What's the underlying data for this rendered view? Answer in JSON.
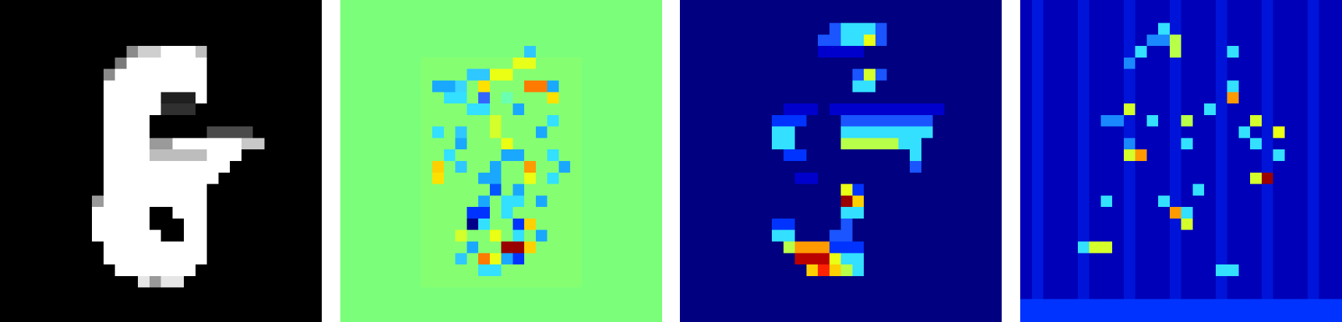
{
  "figure": {
    "panels": [
      {
        "name": "input-digit",
        "colormap": "gray"
      },
      {
        "name": "attribution-diverging",
        "colormap": "jet"
      },
      {
        "name": "attribution-positive",
        "colormap": "jet"
      },
      {
        "name": "attribution-noise",
        "colormap": "jet"
      }
    ]
  },
  "colors": {
    "panel1_background": "#000000",
    "panel2_background": "#7bff7b",
    "panel3_background": "#000080",
    "panel4_background": "#0000b8"
  }
}
